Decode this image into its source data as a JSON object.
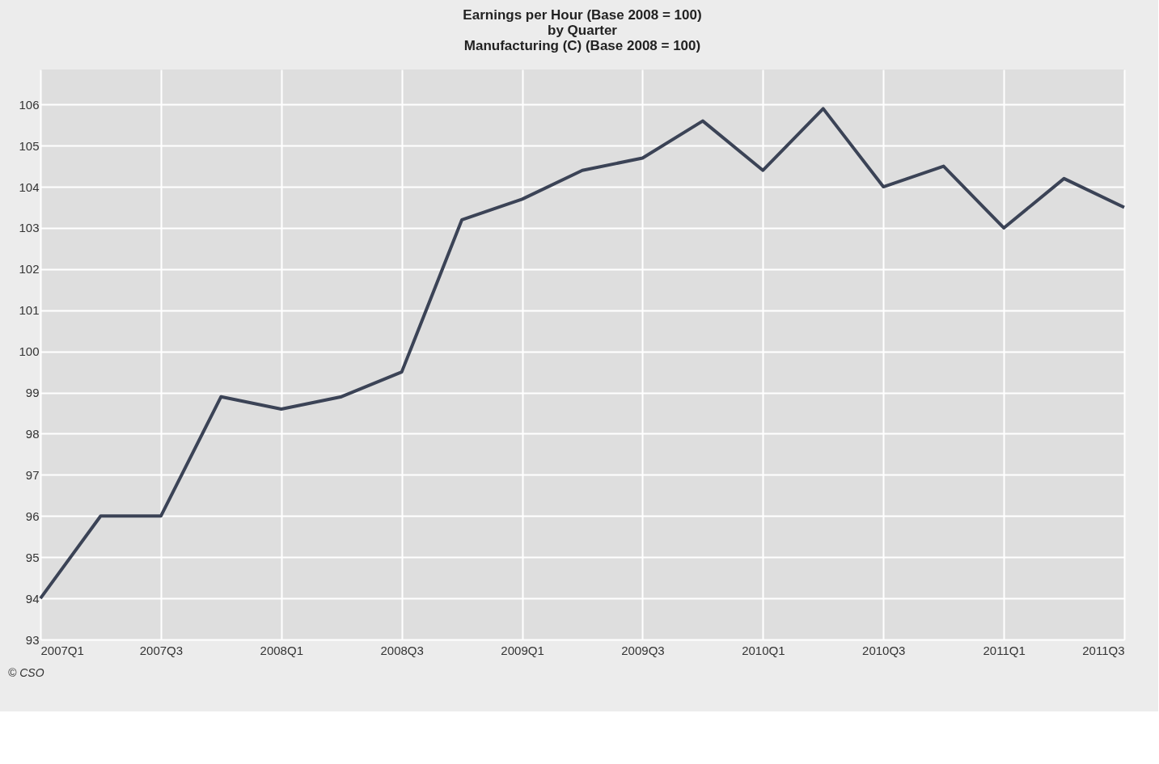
{
  "chart_data": {
    "type": "line",
    "title": [
      "Earnings per Hour (Base 2008 = 100)",
      "by Quarter",
      "Manufacturing (C) (Base 2008 = 100)"
    ],
    "categories": [
      "2007Q1",
      null,
      "2007Q3",
      null,
      "2008Q1",
      null,
      "2008Q3",
      null,
      "2009Q1",
      null,
      "2009Q3",
      null,
      "2010Q1",
      null,
      "2010Q3",
      null,
      "2011Q1",
      null,
      "2011Q3"
    ],
    "series": [
      {
        "color": "#3b4356",
        "values": [
          94,
          96,
          96,
          98.9,
          98.6,
          98.9,
          99.5,
          103.2,
          103.7,
          104.4,
          104.7,
          105.6,
          104.4,
          105.9,
          104.0,
          104.5,
          103.0,
          104.2,
          103.5
        ]
      }
    ],
    "ylim": [
      93,
      106.85
    ],
    "yticks": [
      93,
      94,
      95,
      96,
      97,
      98,
      99,
      100,
      101,
      102,
      103,
      104,
      105,
      106
    ],
    "grid": true,
    "marker": "none",
    "line_style": "solid",
    "annotations": [
      "© CSO"
    ]
  }
}
